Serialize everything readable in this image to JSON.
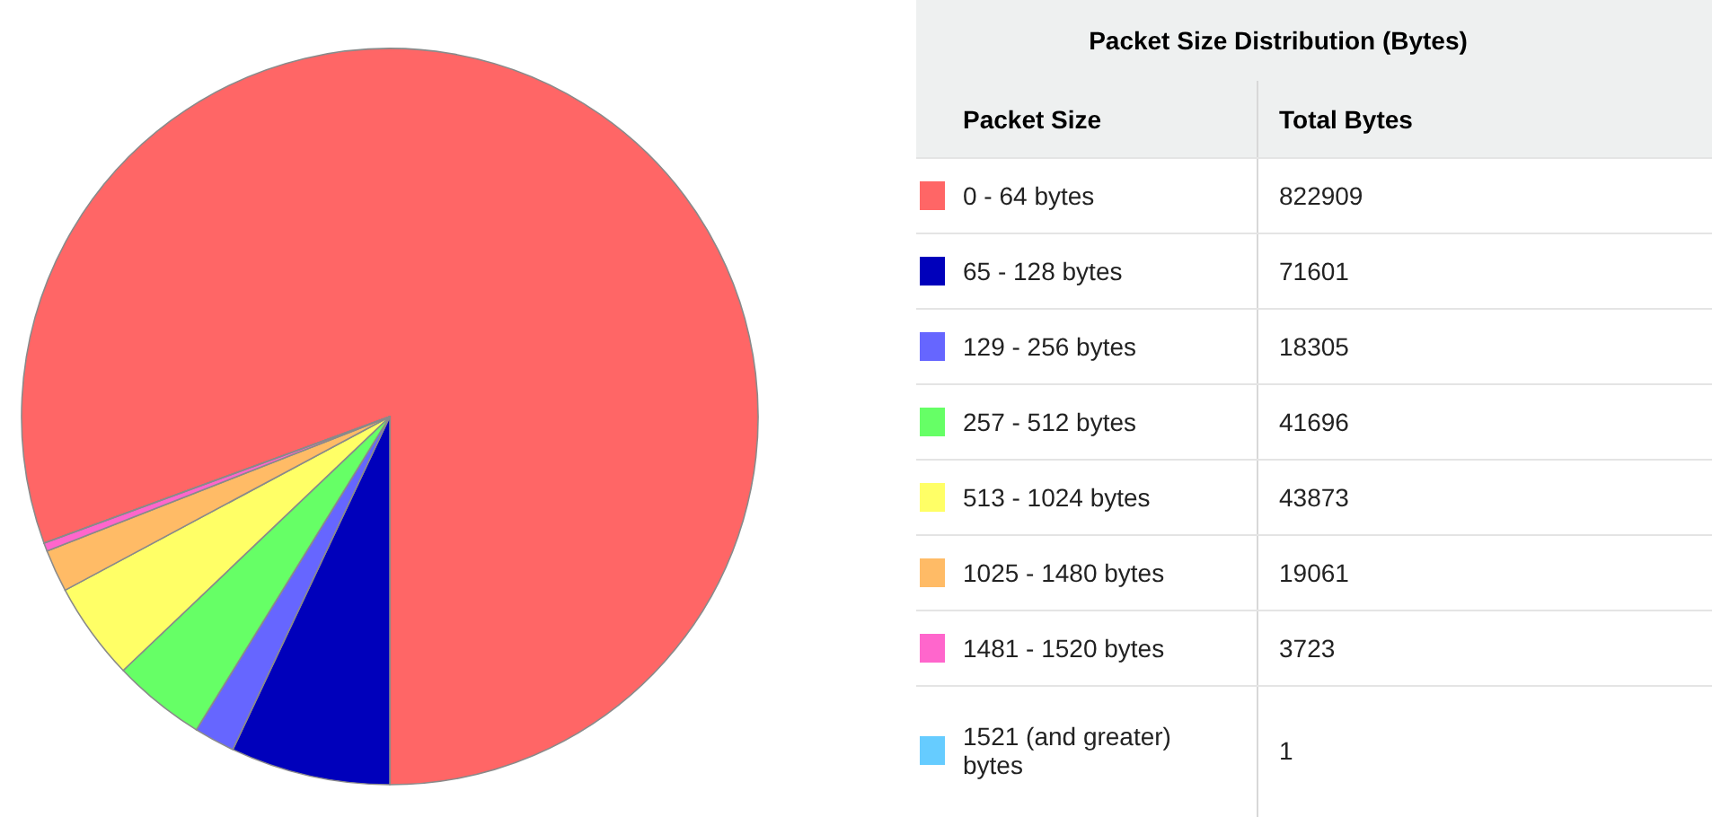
{
  "chart_data": {
    "type": "pie",
    "title": "Packet Size Distribution (Bytes)",
    "categories": [
      "0 - 64 bytes",
      "65 - 128 bytes",
      "129 - 256 bytes",
      "257 - 512 bytes",
      "513 - 1024 bytes",
      "1025 - 1480 bytes",
      "1481 - 1520 bytes",
      "1521 (and greater) bytes"
    ],
    "values": [
      822909,
      71601,
      18305,
      41696,
      43873,
      19061,
      3723,
      1
    ],
    "colors": [
      "#ff6666",
      "#0000bb",
      "#6666ff",
      "#66ff66",
      "#ffff66",
      "#ffbb66",
      "#ff66cc",
      "#66ccff"
    ],
    "annotations": [
      "Packet Size",
      "Total Bytes"
    ],
    "data_labels": true,
    "legend": "right"
  }
}
